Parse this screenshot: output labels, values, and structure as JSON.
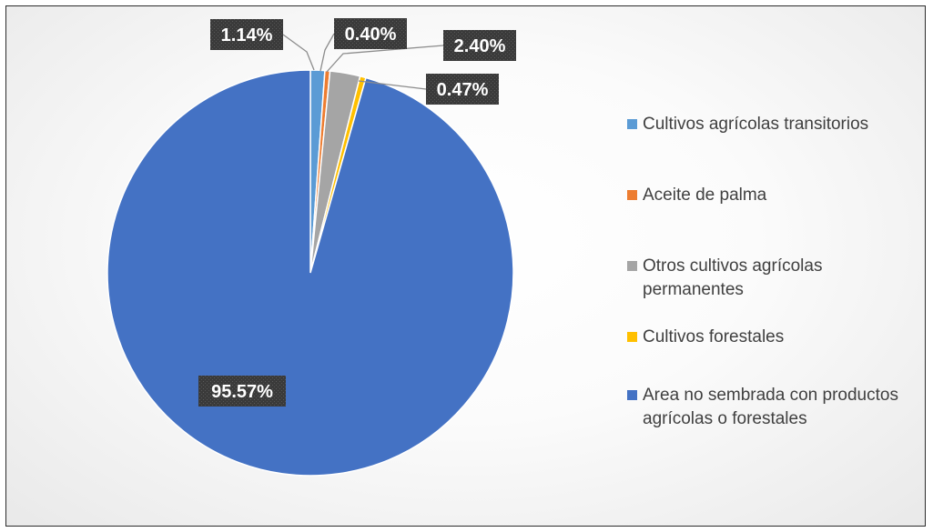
{
  "chart_data": {
    "type": "pie",
    "start_angle_deg": 0,
    "direction": "clockwise",
    "series": [
      {
        "name": "Cultivos agrícolas transitorios",
        "value": 1.14,
        "label": "1.14%",
        "color": "#5B9BD5"
      },
      {
        "name": "Aceite de palma",
        "value": 0.4,
        "label": "0.40%",
        "color": "#ED7D31"
      },
      {
        "name": "Otros cultivos agrícolas permanentes",
        "value": 2.4,
        "label": "2.40%",
        "color": "#A5A5A5"
      },
      {
        "name": "Cultivos forestales",
        "value": 0.47,
        "label": "0.47%",
        "color": "#FFC000"
      },
      {
        "name": "Area no sembrada con productos agrícolas o forestales",
        "value": 95.57,
        "label": "95.57%",
        "color": "#4472C4"
      }
    ],
    "data_labels": "outside-with-leader-lines",
    "label_style": "white bold text on dark patterned box",
    "legend_position": "right"
  }
}
